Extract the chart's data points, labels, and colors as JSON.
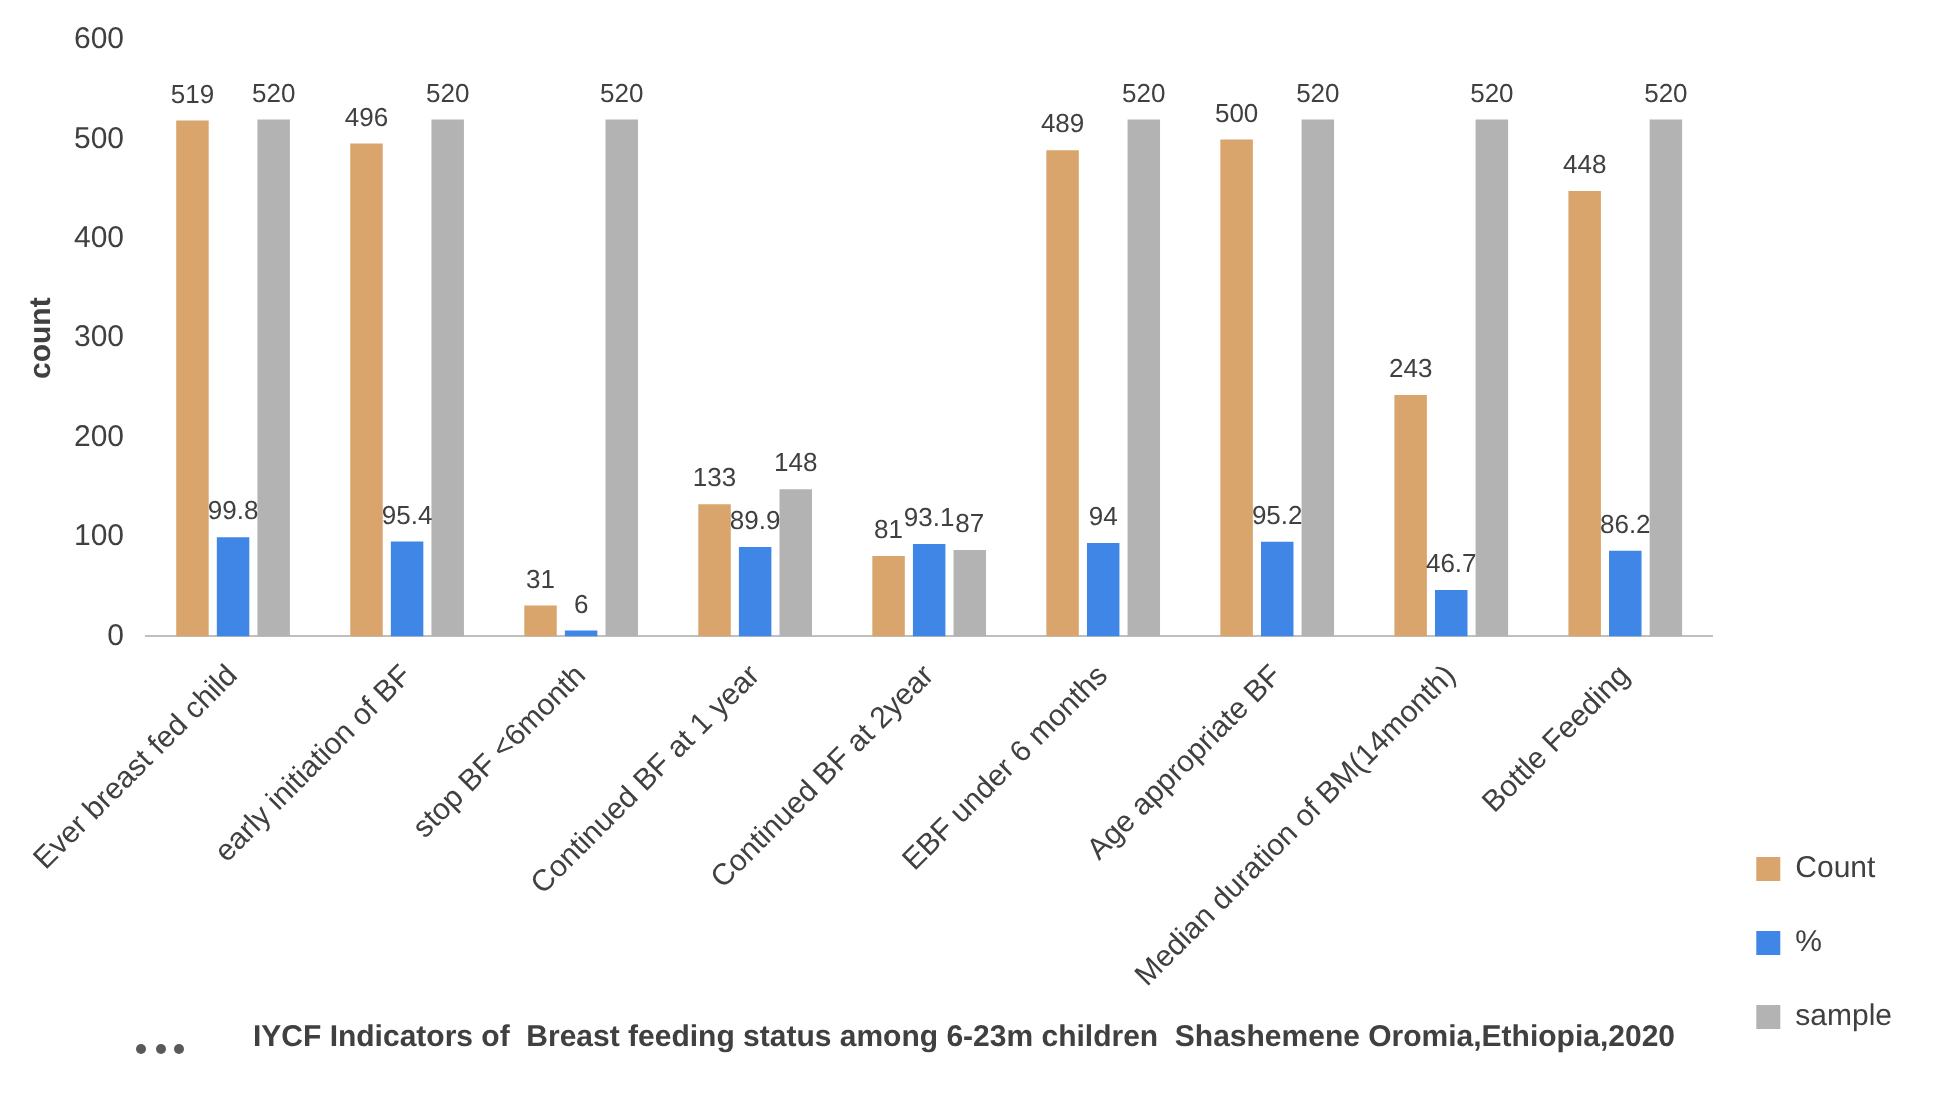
{
  "chart_data": {
    "type": "bar",
    "title": "IYCF Indicators of  Breast feeding status among 6-23m children  Shashemene Oromia,Ethiopia,2020",
    "ylabel": "count",
    "categories": [
      "Ever breast fed child",
      "early initiation of BF",
      "stop BF <6month",
      "Continued BF at 1 year",
      "Continued BF at 2year",
      "EBF under 6 months",
      "Age appropriate BF",
      "Median duration of BM(14month)",
      "Bottle Feeding"
    ],
    "series": [
      {
        "name": "Count",
        "color": "#d9a56c",
        "values": [
          519,
          496,
          31,
          133,
          81,
          489,
          500,
          243,
          448
        ]
      },
      {
        "name": "%",
        "color": "#3f86e6",
        "values": [
          99.8,
          95.4,
          6,
          89.9,
          93.1,
          94,
          95.2,
          46.7,
          86.2
        ]
      },
      {
        "name": "sample",
        "color": "#b3b3b3",
        "values": [
          520,
          520,
          520,
          148,
          87,
          520,
          520,
          520,
          520
        ]
      }
    ],
    "ylim": [
      0,
      600
    ],
    "yticks": [
      0,
      100,
      200,
      300,
      400,
      500,
      600
    ],
    "grid": false,
    "legend": "bottom right",
    "data_labels": true
  }
}
